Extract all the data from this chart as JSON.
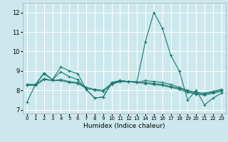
{
  "title": "",
  "xlabel": "Humidex (Indice chaleur)",
  "xlim": [
    -0.5,
    23.5
  ],
  "ylim": [
    6.8,
    12.5
  ],
  "yticks": [
    7,
    8,
    9,
    10,
    11,
    12
  ],
  "xticks": [
    0,
    1,
    2,
    3,
    4,
    5,
    6,
    7,
    8,
    9,
    10,
    11,
    12,
    13,
    14,
    15,
    16,
    17,
    18,
    19,
    20,
    21,
    22,
    23
  ],
  "bg_color": "#cce8ed",
  "grid_color": "#ffffff",
  "line_color": "#1a7a6e",
  "lines": [
    [
      7.4,
      8.3,
      8.9,
      8.55,
      9.2,
      9.0,
      8.85,
      8.05,
      7.6,
      7.65,
      8.4,
      8.5,
      8.45,
      8.45,
      10.5,
      12.0,
      11.2,
      9.8,
      9.0,
      7.5,
      8.0,
      7.25,
      7.6,
      7.85
    ],
    [
      8.3,
      8.3,
      8.85,
      8.55,
      8.95,
      8.7,
      8.55,
      8.05,
      7.6,
      7.65,
      8.35,
      8.5,
      8.45,
      8.4,
      8.5,
      8.45,
      8.4,
      8.3,
      8.15,
      8.0,
      7.9,
      7.85,
      7.95,
      8.05
    ],
    [
      8.3,
      8.3,
      8.6,
      8.5,
      8.55,
      8.45,
      8.4,
      8.15,
      8.05,
      8.0,
      8.35,
      8.45,
      8.45,
      8.4,
      8.4,
      8.35,
      8.3,
      8.2,
      8.1,
      7.95,
      7.85,
      7.8,
      7.9,
      8.0
    ],
    [
      8.25,
      8.25,
      8.55,
      8.5,
      8.5,
      8.4,
      8.35,
      8.1,
      8.0,
      7.95,
      8.3,
      8.45,
      8.45,
      8.4,
      8.35,
      8.3,
      8.25,
      8.15,
      8.05,
      7.9,
      7.8,
      7.75,
      7.85,
      7.95
    ]
  ]
}
